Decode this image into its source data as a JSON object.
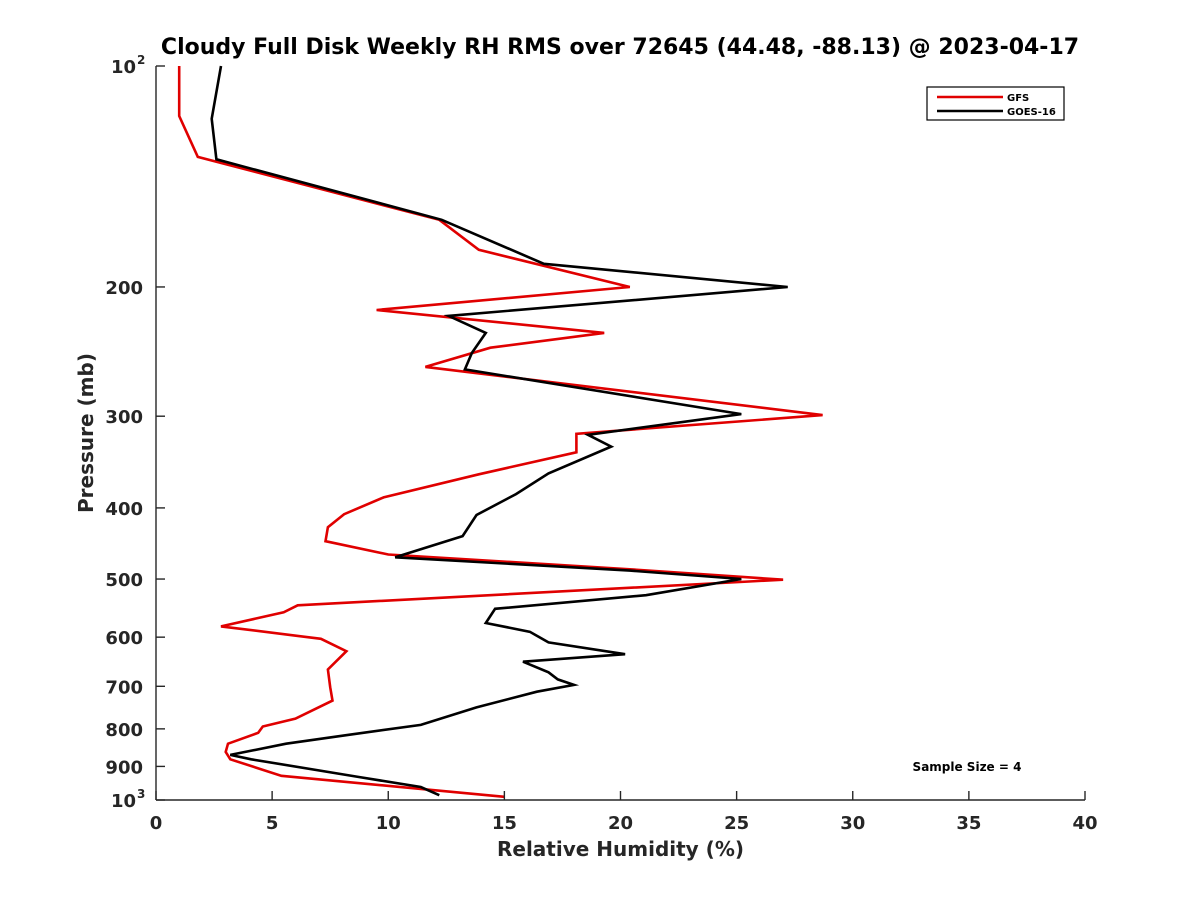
{
  "chart_data": {
    "type": "line",
    "title": "Cloudy Full Disk Weekly RH RMS over 72645 (44.48, -88.13) @ 2023-04-17",
    "xlabel": "Relative Humidity (%)",
    "ylabel": "Pressure (mb)",
    "xlim": [
      0,
      40
    ],
    "ylim": [
      100,
      1000
    ],
    "y_scale": "log",
    "y_reversed": true,
    "grid": false,
    "x_ticks": [
      0,
      5,
      10,
      15,
      20,
      25,
      30,
      35,
      40
    ],
    "y_ticks": [
      {
        "value": 100,
        "label": "10",
        "sup": "2"
      },
      {
        "value": 200,
        "label": "200"
      },
      {
        "value": 300,
        "label": "300"
      },
      {
        "value": 400,
        "label": "400"
      },
      {
        "value": 500,
        "label": "500"
      },
      {
        "value": 600,
        "label": "600"
      },
      {
        "value": 700,
        "label": "700"
      },
      {
        "value": 800,
        "label": "800"
      },
      {
        "value": 900,
        "label": "900"
      },
      {
        "value": 1000,
        "label": "10",
        "sup": "3"
      }
    ],
    "legend_position": "top-right",
    "annotation": "Sample Size = 4",
    "series": [
      {
        "name": "GFS",
        "color": "#e00000",
        "points": [
          [
            1.0,
            100
          ],
          [
            1.0,
            117
          ],
          [
            1.8,
            133
          ],
          [
            12.2,
            162
          ],
          [
            13.9,
            178
          ],
          [
            20.4,
            200
          ],
          [
            9.5,
            215
          ],
          [
            19.3,
            231
          ],
          [
            14.4,
            242
          ],
          [
            11.6,
            257
          ],
          [
            28.7,
            299
          ],
          [
            18.1,
            317
          ],
          [
            18.1,
            336
          ],
          [
            13.9,
            360
          ],
          [
            9.8,
            387
          ],
          [
            8.1,
            408
          ],
          [
            7.4,
            425
          ],
          [
            7.3,
            444
          ],
          [
            10.0,
            463
          ],
          [
            20.4,
            485
          ],
          [
            27.0,
            501
          ],
          [
            6.1,
            543
          ],
          [
            5.5,
            555
          ],
          [
            2.8,
            580
          ],
          [
            7.1,
            603
          ],
          [
            8.2,
            627
          ],
          [
            7.4,
            664
          ],
          [
            7.5,
            702
          ],
          [
            7.6,
            732
          ],
          [
            6.0,
            775
          ],
          [
            4.6,
            794
          ],
          [
            4.4,
            810
          ],
          [
            3.1,
            838
          ],
          [
            3.0,
            860
          ],
          [
            3.2,
            880
          ],
          [
            5.4,
            927
          ],
          [
            15.0,
            990
          ]
        ]
      },
      {
        "name": "GOES-16",
        "color": "#000000",
        "points": [
          [
            2.8,
            100
          ],
          [
            2.4,
            118
          ],
          [
            2.6,
            134
          ],
          [
            12.3,
            162
          ],
          [
            16.7,
            186
          ],
          [
            27.2,
            200
          ],
          [
            12.6,
            219
          ],
          [
            14.2,
            231
          ],
          [
            13.6,
            246
          ],
          [
            13.3,
            259
          ],
          [
            25.2,
            298
          ],
          [
            18.6,
            318
          ],
          [
            19.6,
            330
          ],
          [
            16.9,
            359
          ],
          [
            15.5,
            383
          ],
          [
            13.8,
            409
          ],
          [
            13.2,
            437
          ],
          [
            10.3,
            467
          ],
          [
            20.4,
            487
          ],
          [
            25.2,
            500
          ],
          [
            21.1,
            526
          ],
          [
            14.6,
            549
          ],
          [
            14.2,
            574
          ],
          [
            16.1,
            590
          ],
          [
            16.9,
            610
          ],
          [
            20.2,
            633
          ],
          [
            15.8,
            648
          ],
          [
            16.9,
            670
          ],
          [
            17.3,
            685
          ],
          [
            18.0,
            697
          ],
          [
            16.4,
            712
          ],
          [
            13.8,
            748
          ],
          [
            11.4,
            790
          ],
          [
            8.3,
            815
          ],
          [
            5.6,
            838
          ],
          [
            3.2,
            868
          ],
          [
            4.1,
            880
          ],
          [
            8.7,
            930
          ],
          [
            11.4,
            960
          ],
          [
            12.2,
            985
          ]
        ]
      }
    ]
  }
}
